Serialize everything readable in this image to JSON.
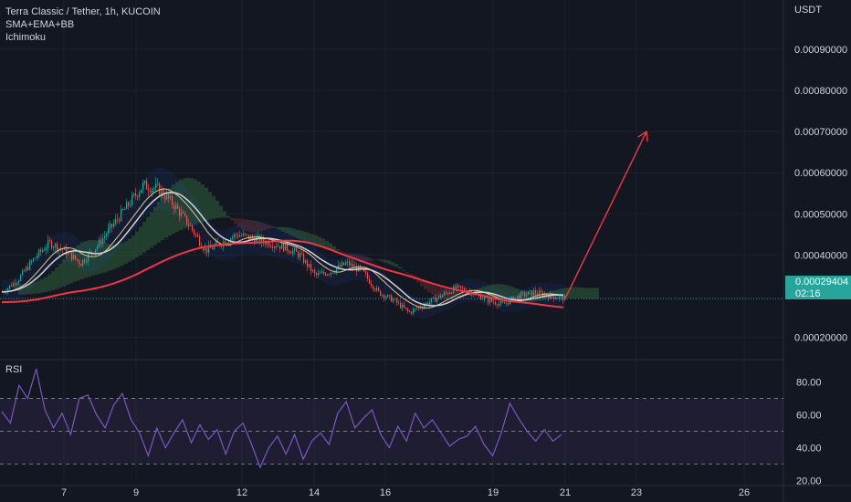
{
  "header": {
    "symbol_line": "Terra Classic / Tether, 1h, KUCOIN",
    "indicator_1": "SMA+EMA+BB",
    "indicator_2": "Ichimoku"
  },
  "price_axis": {
    "currency": "USDT",
    "ticks": [
      "0.00090000",
      "0.00080000",
      "0.00070000",
      "0.00060000",
      "0.00050000",
      "0.00040000",
      "0.00020000"
    ],
    "tick_values": [
      0.0009,
      0.0008,
      0.0007,
      0.0006,
      0.0005,
      0.0004,
      0.0002
    ]
  },
  "last_price": {
    "value": "0.00029404",
    "countdown": "02:16",
    "color": "#26a69a"
  },
  "rsi": {
    "label": "RSI",
    "ticks": [
      "80.00",
      "60.00",
      "40.00",
      "20.00"
    ],
    "tick_values": [
      80,
      60,
      40,
      20
    ],
    "upper_band": 70,
    "lower_band": 30,
    "line_color": "#7e57c2"
  },
  "time_axis": {
    "labels": [
      "7",
      "9",
      "12",
      "14",
      "16",
      "19",
      "21",
      "23",
      "26"
    ]
  },
  "colors": {
    "background": "#131722",
    "up": "#26a69a",
    "down": "#ef5350",
    "long_ma": "#f23645",
    "arrow": "#f23645",
    "cloud_green": "#2e5e3a",
    "cloud_red": "#5e2c2e"
  },
  "chart_data": {
    "type": "line",
    "title": "Terra Classic / Tether, 1h, KUCOIN",
    "ylabel": "USDT",
    "ylim": [
      0.00015,
      0.00102
    ],
    "x_labels": [
      "7",
      "9",
      "12",
      "14",
      "16",
      "19",
      "21",
      "23",
      "26"
    ],
    "series": [
      {
        "values": [
          0.00031,
          0.00034,
          0.00039,
          0.00043,
          0.00041,
          0.00038,
          0.00042,
          0.00047,
          0.00052,
          0.00057,
          0.00056,
          0.00052,
          0.00047,
          0.00041,
          0.00043,
          0.00045,
          0.00044,
          0.00043,
          0.00042,
          0.0004,
          0.00035,
          0.00036,
          0.00038,
          0.00036,
          0.00031,
          0.00029,
          0.00026,
          0.00028,
          0.0003,
          0.00032,
          0.00031,
          0.00029,
          0.00028,
          0.0003,
          0.00031,
          0.0003,
          0.00029404
        ]
      },
      {
        "name": "RSI",
        "values": [
          62,
          55,
          78,
          70,
          88,
          63,
          52,
          61,
          48,
          70,
          72,
          60,
          52,
          66,
          73,
          57,
          49,
          35,
          52,
          40,
          49,
          57,
          43,
          54,
          45,
          51,
          36,
          50,
          55,
          42,
          28,
          40,
          47,
          36,
          48,
          33,
          44,
          49,
          42,
          61,
          68,
          52,
          58,
          63,
          48,
          40,
          53,
          44,
          61,
          52,
          57,
          49,
          41,
          45,
          47,
          53,
          42,
          35,
          49,
          67,
          58,
          50,
          44,
          51,
          44,
          48
        ]
      }
    ],
    "projection": {
      "from": 0.00029404,
      "to": 0.0007
    },
    "rsi_ylim": [
      18,
      92
    ]
  }
}
